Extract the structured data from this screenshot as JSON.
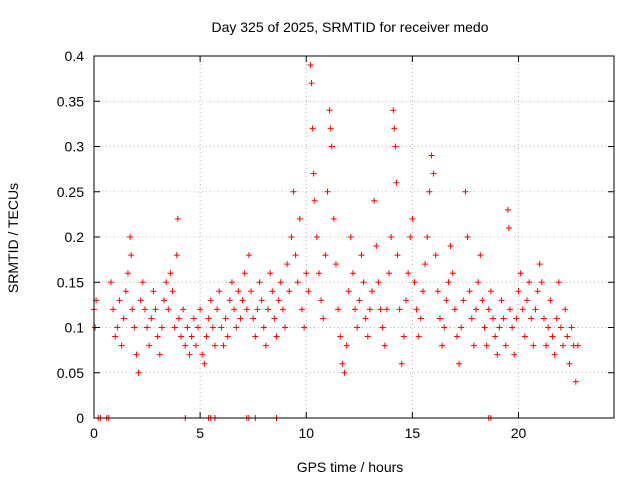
{
  "chart_data": {
    "type": "scatter",
    "title": "Day 325 of 2025, SRMTID for receiver medo",
    "xlabel": "GPS time / hours",
    "ylabel": "SRMTID / TECUs",
    "xlim": [
      0,
      24.5
    ],
    "ylim": [
      0,
      0.4
    ],
    "x_ticks": [
      0,
      5,
      10,
      15,
      20
    ],
    "x_tick_labels": [
      "0",
      "5",
      "10",
      "15",
      "20"
    ],
    "y_ticks": [
      0,
      0.05,
      0.1,
      0.15,
      0.2,
      0.25,
      0.3,
      0.35,
      0.4
    ],
    "y_tick_labels": [
      "0",
      "0.05",
      "0.1",
      "0.15",
      "0.2",
      "0.25",
      "0.3",
      "0.35",
      "0.4"
    ],
    "grid": true,
    "marker": "+",
    "color": "#ff0000",
    "series": [
      {
        "name": "SRMTID",
        "points": [
          [
            0.0,
            0.12
          ],
          [
            0.05,
            0.1
          ],
          [
            0.1,
            0.13
          ],
          [
            0.8,
            0.15
          ],
          [
            0.9,
            0.12
          ],
          [
            1.0,
            0.09
          ],
          [
            1.1,
            0.1
          ],
          [
            1.2,
            0.13
          ],
          [
            1.3,
            0.08
          ],
          [
            1.4,
            0.11
          ],
          [
            1.5,
            0.14
          ],
          [
            1.6,
            0.16
          ],
          [
            1.7,
            0.2
          ],
          [
            1.75,
            0.18
          ],
          [
            1.8,
            0.12
          ],
          [
            1.9,
            0.1
          ],
          [
            2.0,
            0.07
          ],
          [
            2.1,
            0.05
          ],
          [
            2.2,
            0.13
          ],
          [
            2.3,
            0.15
          ],
          [
            2.4,
            0.12
          ],
          [
            2.5,
            0.1
          ],
          [
            2.6,
            0.08
          ],
          [
            2.7,
            0.11
          ],
          [
            2.8,
            0.14
          ],
          [
            2.9,
            0.12
          ],
          [
            3.0,
            0.09
          ],
          [
            3.1,
            0.07
          ],
          [
            3.2,
            0.1
          ],
          [
            3.3,
            0.13
          ],
          [
            3.4,
            0.15
          ],
          [
            3.5,
            0.12
          ],
          [
            3.6,
            0.16
          ],
          [
            3.7,
            0.14
          ],
          [
            3.8,
            0.1
          ],
          [
            3.9,
            0.18
          ],
          [
            3.95,
            0.22
          ],
          [
            4.0,
            0.11
          ],
          [
            4.1,
            0.09
          ],
          [
            4.2,
            0.12
          ],
          [
            4.3,
            0.08
          ],
          [
            4.4,
            0.1
          ],
          [
            4.5,
            0.07
          ],
          [
            4.6,
            0.09
          ],
          [
            4.7,
            0.11
          ],
          [
            4.8,
            0.08
          ],
          [
            4.9,
            0.1
          ],
          [
            5.0,
            0.12
          ],
          [
            5.1,
            0.07
          ],
          [
            5.2,
            0.06
          ],
          [
            5.3,
            0.09
          ],
          [
            5.4,
            0.11
          ],
          [
            5.5,
            0.13
          ],
          [
            5.6,
            0.1
          ],
          [
            5.7,
            0.08
          ],
          [
            5.8,
            0.12
          ],
          [
            5.9,
            0.14
          ],
          [
            6.0,
            0.1
          ],
          [
            6.1,
            0.08
          ],
          [
            6.2,
            0.11
          ],
          [
            6.3,
            0.09
          ],
          [
            6.4,
            0.13
          ],
          [
            6.5,
            0.15
          ],
          [
            6.6,
            0.12
          ],
          [
            6.7,
            0.1
          ],
          [
            6.8,
            0.14
          ],
          [
            6.9,
            0.11
          ],
          [
            7.0,
            0.13
          ],
          [
            7.1,
            0.16
          ],
          [
            7.2,
            0.12
          ],
          [
            7.3,
            0.18
          ],
          [
            7.4,
            0.14
          ],
          [
            7.5,
            0.11
          ],
          [
            7.6,
            0.09
          ],
          [
            7.7,
            0.12
          ],
          [
            7.8,
            0.15
          ],
          [
            7.9,
            0.13
          ],
          [
            8.0,
            0.1
          ],
          [
            8.1,
            0.08
          ],
          [
            8.2,
            0.12
          ],
          [
            8.3,
            0.16
          ],
          [
            8.4,
            0.14
          ],
          [
            8.5,
            0.11
          ],
          [
            8.6,
            0.09
          ],
          [
            8.7,
            0.13
          ],
          [
            8.8,
            0.15
          ],
          [
            8.9,
            0.12
          ],
          [
            9.0,
            0.1
          ],
          [
            9.1,
            0.17
          ],
          [
            9.2,
            0.14
          ],
          [
            9.3,
            0.2
          ],
          [
            9.4,
            0.25
          ],
          [
            9.5,
            0.18
          ],
          [
            9.6,
            0.15
          ],
          [
            9.7,
            0.22
          ],
          [
            9.8,
            0.12
          ],
          [
            9.9,
            0.1
          ],
          [
            10.0,
            0.16
          ],
          [
            10.1,
            0.14
          ],
          [
            10.2,
            0.39
          ],
          [
            10.25,
            0.37
          ],
          [
            10.3,
            0.32
          ],
          [
            10.35,
            0.27
          ],
          [
            10.4,
            0.24
          ],
          [
            10.5,
            0.2
          ],
          [
            10.6,
            0.16
          ],
          [
            10.7,
            0.13
          ],
          [
            10.8,
            0.11
          ],
          [
            10.9,
            0.18
          ],
          [
            11.0,
            0.25
          ],
          [
            11.1,
            0.34
          ],
          [
            11.15,
            0.32
          ],
          [
            11.2,
            0.3
          ],
          [
            11.3,
            0.22
          ],
          [
            11.4,
            0.17
          ],
          [
            11.5,
            0.12
          ],
          [
            11.6,
            0.09
          ],
          [
            11.7,
            0.06
          ],
          [
            11.8,
            0.05
          ],
          [
            11.9,
            0.08
          ],
          [
            12.0,
            0.14
          ],
          [
            12.1,
            0.2
          ],
          [
            12.2,
            0.16
          ],
          [
            12.3,
            0.12
          ],
          [
            12.4,
            0.1
          ],
          [
            12.5,
            0.13
          ],
          [
            12.6,
            0.18
          ],
          [
            12.7,
            0.15
          ],
          [
            12.8,
            0.11
          ],
          [
            12.9,
            0.09
          ],
          [
            13.0,
            0.12
          ],
          [
            13.1,
            0.14
          ],
          [
            13.2,
            0.24
          ],
          [
            13.3,
            0.19
          ],
          [
            13.4,
            0.15
          ],
          [
            13.5,
            0.12
          ],
          [
            13.6,
            0.1
          ],
          [
            13.7,
            0.08
          ],
          [
            13.8,
            0.12
          ],
          [
            13.9,
            0.16
          ],
          [
            14.0,
            0.2
          ],
          [
            14.1,
            0.34
          ],
          [
            14.15,
            0.32
          ],
          [
            14.2,
            0.3
          ],
          [
            14.25,
            0.26
          ],
          [
            14.3,
            0.18
          ],
          [
            14.4,
            0.12
          ],
          [
            14.5,
            0.06
          ],
          [
            14.6,
            0.09
          ],
          [
            14.7,
            0.13
          ],
          [
            14.8,
            0.16
          ],
          [
            14.9,
            0.2
          ],
          [
            15.0,
            0.22
          ],
          [
            15.1,
            0.15
          ],
          [
            15.2,
            0.12
          ],
          [
            15.3,
            0.09
          ],
          [
            15.4,
            0.11
          ],
          [
            15.5,
            0.14
          ],
          [
            15.6,
            0.17
          ],
          [
            15.7,
            0.2
          ],
          [
            15.8,
            0.25
          ],
          [
            15.9,
            0.29
          ],
          [
            16.0,
            0.27
          ],
          [
            16.1,
            0.18
          ],
          [
            16.2,
            0.14
          ],
          [
            16.3,
            0.11
          ],
          [
            16.4,
            0.08
          ],
          [
            16.5,
            0.1
          ],
          [
            16.6,
            0.13
          ],
          [
            16.7,
            0.15
          ],
          [
            16.8,
            0.19
          ],
          [
            16.9,
            0.16
          ],
          [
            17.0,
            0.12
          ],
          [
            17.1,
            0.09
          ],
          [
            17.2,
            0.06
          ],
          [
            17.3,
            0.1
          ],
          [
            17.4,
            0.13
          ],
          [
            17.5,
            0.25
          ],
          [
            17.6,
            0.2
          ],
          [
            17.7,
            0.14
          ],
          [
            17.8,
            0.11
          ],
          [
            17.9,
            0.08
          ],
          [
            18.0,
            0.12
          ],
          [
            18.1,
            0.15
          ],
          [
            18.2,
            0.18
          ],
          [
            18.3,
            0.13
          ],
          [
            18.4,
            0.1
          ],
          [
            18.5,
            0.08
          ],
          [
            18.6,
            0.12
          ],
          [
            18.7,
            0.14
          ],
          [
            18.8,
            0.11
          ],
          [
            18.9,
            0.09
          ],
          [
            19.0,
            0.07
          ],
          [
            19.1,
            0.1
          ],
          [
            19.2,
            0.13
          ],
          [
            19.3,
            0.11
          ],
          [
            19.4,
            0.08
          ],
          [
            19.5,
            0.23
          ],
          [
            19.55,
            0.21
          ],
          [
            19.6,
            0.12
          ],
          [
            19.7,
            0.1
          ],
          [
            19.8,
            0.07
          ],
          [
            19.9,
            0.11
          ],
          [
            20.0,
            0.14
          ],
          [
            20.1,
            0.16
          ],
          [
            20.2,
            0.12
          ],
          [
            20.3,
            0.09
          ],
          [
            20.4,
            0.13
          ],
          [
            20.5,
            0.15
          ],
          [
            20.6,
            0.11
          ],
          [
            20.7,
            0.08
          ],
          [
            20.8,
            0.12
          ],
          [
            20.9,
            0.14
          ],
          [
            21.0,
            0.17
          ],
          [
            21.1,
            0.15
          ],
          [
            21.2,
            0.11
          ],
          [
            21.3,
            0.08
          ],
          [
            21.4,
            0.1
          ],
          [
            21.5,
            0.13
          ],
          [
            21.6,
            0.09
          ],
          [
            21.7,
            0.07
          ],
          [
            21.8,
            0.11
          ],
          [
            21.9,
            0.15
          ],
          [
            22.0,
            0.1
          ],
          [
            22.1,
            0.08
          ],
          [
            22.2,
            0.12
          ],
          [
            22.3,
            0.09
          ],
          [
            22.4,
            0.06
          ],
          [
            22.5,
            0.1
          ],
          [
            22.6,
            0.08
          ],
          [
            22.7,
            0.04
          ],
          [
            22.8,
            0.08
          ]
        ]
      }
    ],
    "zero_points_x": [
      0.2,
      0.3,
      0.6,
      0.7,
      4.3,
      5.4,
      5.5,
      5.7,
      7.2,
      7.3,
      7.6,
      8.6,
      18.6,
      18.7
    ]
  }
}
